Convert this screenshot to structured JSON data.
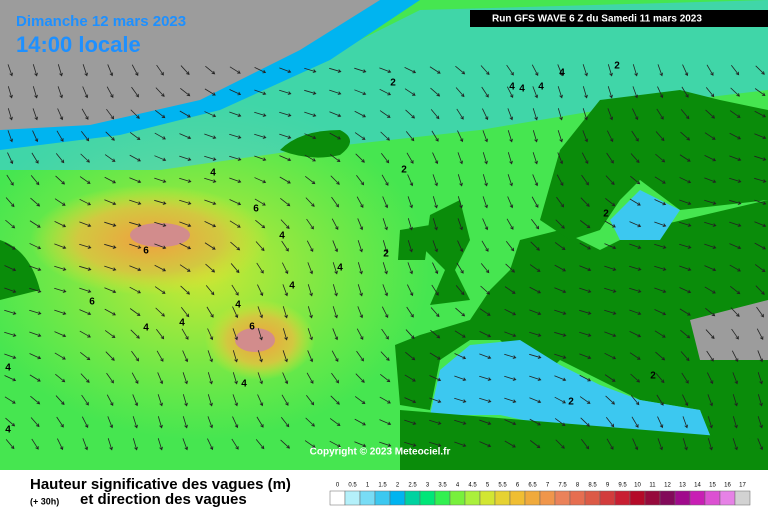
{
  "header": {
    "date": "Dimanche 12 mars 2023",
    "time": "14:00 locale",
    "run": "Run GFS WAVE 6 Z du Samedi 11 mars 2023"
  },
  "map": {
    "copyright": "Copyright © 2023 Meteociel.fr",
    "contour_labels": [
      2,
      4,
      4,
      4,
      4,
      2,
      2,
      4,
      6,
      6,
      4,
      6,
      4,
      4,
      4,
      4,
      4,
      6,
      4,
      4,
      4,
      2,
      2,
      2,
      2
    ]
  },
  "legend": {
    "title": "Hauteur significative des vagues (m)",
    "lead": "(+ 30h)",
    "subtitle": "et direction des vagues",
    "scale": [
      0,
      0.5,
      1,
      1.5,
      2,
      2.5,
      3,
      3.5,
      4,
      4.5,
      5,
      5.5,
      6,
      6.5,
      7,
      7.5,
      8,
      8.5,
      9,
      9.5,
      10,
      11,
      12,
      13,
      14,
      15,
      16,
      17
    ],
    "colors": [
      "#ffffff",
      "#b4f0fa",
      "#78dcf5",
      "#3cc8f0",
      "#00b4f0",
      "#00d2a0",
      "#00e678",
      "#32f050",
      "#78f03c",
      "#aaf03c",
      "#d2e632",
      "#e6d232",
      "#f0be32",
      "#f0aa3c",
      "#f0964b",
      "#eb825a",
      "#e66e50",
      "#dc5a46",
      "#d23c3c",
      "#c81e32",
      "#b40a28",
      "#960a3c",
      "#820a5a",
      "#a00a8c",
      "#c81eb4",
      "#dc50d2",
      "#e682e6",
      "#d2d2d2"
    ]
  }
}
